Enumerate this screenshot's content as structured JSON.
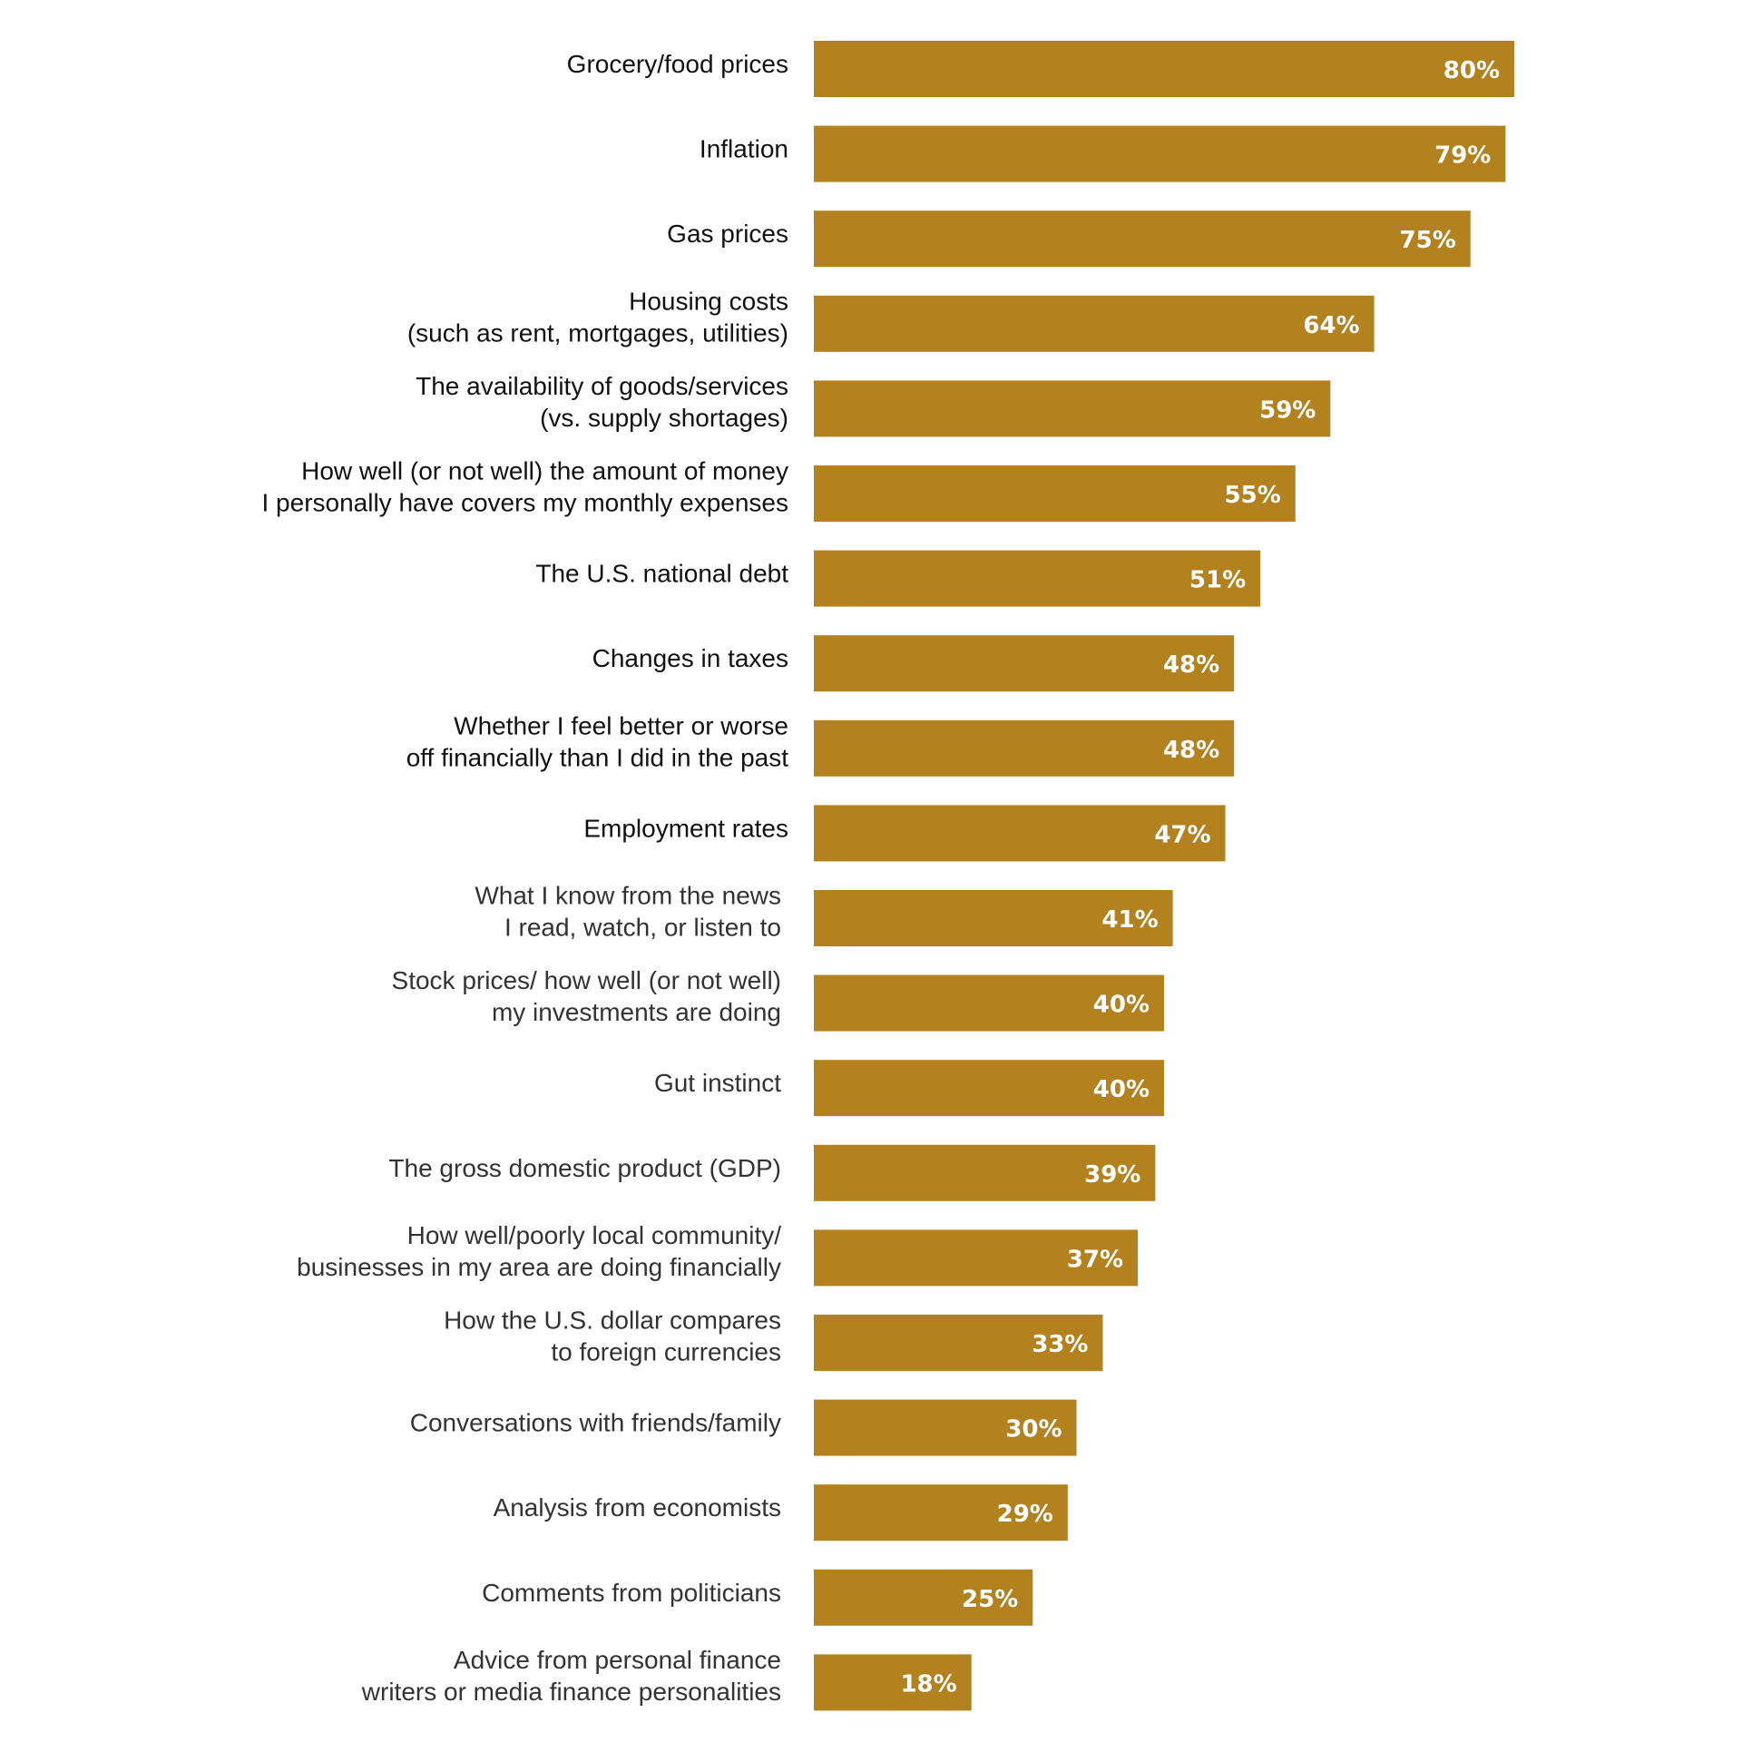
{
  "chart_data": {
    "type": "bar",
    "orientation": "horizontal",
    "bar_color": "#B3821E",
    "label_color_primary": "#111111",
    "label_color_secondary": "#333333",
    "categories": [
      [
        "Grocery/food prices"
      ],
      [
        "Inflation"
      ],
      [
        "Gas prices"
      ],
      [
        "Housing costs",
        "(such as rent, mortgages, utilities)"
      ],
      [
        "The availability of goods/services",
        "(vs. supply shortages)"
      ],
      [
        "How well (or not well) the amount of money",
        "I personally have covers my monthly expenses"
      ],
      [
        "The U.S. national debt"
      ],
      [
        "Changes in taxes"
      ],
      [
        "Whether I feel better or worse",
        "off financially than I did in the past"
      ],
      [
        "Employment rates"
      ],
      [
        "What I know from the news",
        "I read, watch, or listen to"
      ],
      [
        "Stock prices/ how well (or not well)",
        "my investments are doing"
      ],
      [
        "Gut instinct"
      ],
      [
        "The gross domestic product (GDP)"
      ],
      [
        "How well/poorly local community/",
        "businesses in my area are doing financially"
      ],
      [
        "How the U.S. dollar compares",
        "to foreign currencies"
      ],
      [
        "Conversations with friends/family"
      ],
      [
        "Analysis from economists"
      ],
      [
        "Comments from politicians"
      ],
      [
        "Advice from personal finance",
        "writers or  media finance personalities"
      ]
    ],
    "values": [
      80,
      79,
      75,
      64,
      59,
      55,
      51,
      48,
      48,
      47,
      41,
      40,
      40,
      39,
      37,
      33,
      30,
      29,
      25,
      18
    ],
    "value_labels": [
      "80%",
      "79%",
      "75%",
      "64%",
      "59%",
      "55%",
      "51%",
      "48%",
      "48%",
      "47%",
      "41%",
      "40%",
      "40%",
      "39%",
      "37%",
      "33%",
      "30%",
      "29%",
      "25%",
      "18%"
    ],
    "title": "",
    "xlabel": "",
    "ylabel": "",
    "xlim": [
      0,
      100
    ],
    "grid": false
  }
}
